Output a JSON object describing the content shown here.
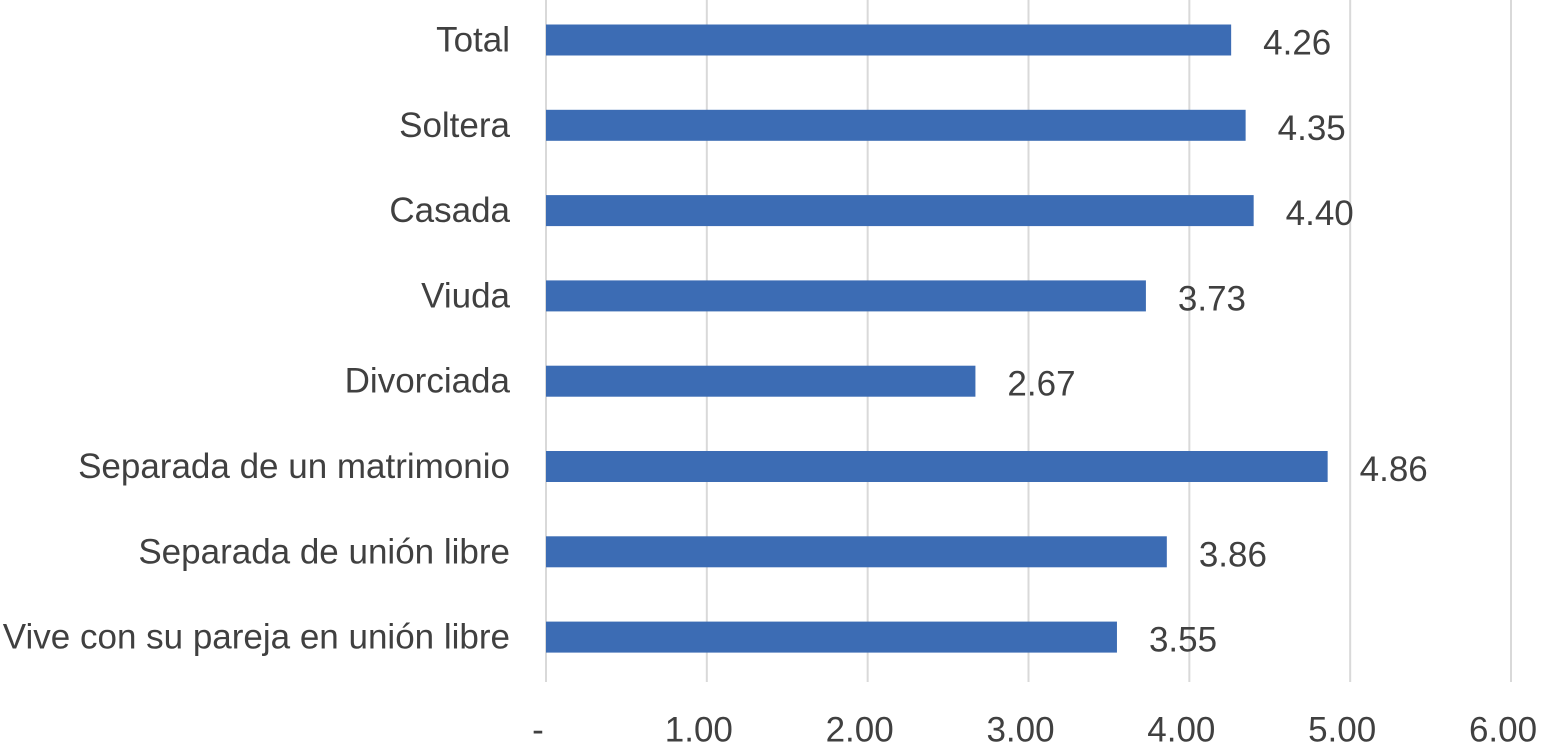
{
  "chart_data": {
    "type": "bar",
    "orientation": "horizontal",
    "categories": [
      "Total",
      "Soltera",
      "Casada",
      "Viuda",
      "Divorciada",
      "Separada de un matrimonio",
      "Separada de unión libre",
      "Vive con su pareja en unión libre"
    ],
    "values": [
      4.26,
      4.35,
      4.4,
      3.73,
      2.67,
      4.86,
      3.86,
      3.55
    ],
    "data_labels": [
      "4.26",
      "4.35",
      "4.40",
      "3.73",
      "2.67",
      "4.86",
      "3.86",
      "3.55"
    ],
    "x_ticks": [
      0,
      1,
      2,
      3,
      4,
      5,
      6
    ],
    "x_tick_labels": [
      "-",
      "1.00",
      "2.00",
      "3.00",
      "4.00",
      "5.00",
      "6.00"
    ],
    "xlim": [
      0,
      6
    ],
    "grid": "vertical",
    "legend": "none",
    "title": "",
    "xlabel": "",
    "ylabel": "",
    "bar_color": "#3c6cb4",
    "text_color": "#404040",
    "grid_color": "#d9d9d9"
  }
}
